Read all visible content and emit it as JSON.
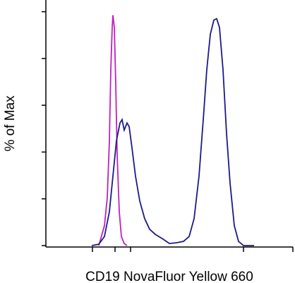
{
  "chart_data": {
    "type": "line",
    "y_label": "% of Max",
    "x_label": "CD19 NovaFluor Yellow 660",
    "xlim": [
      0,
      350
    ],
    "ylim": [
      0,
      105
    ],
    "xticks": [
      66,
      98,
      120,
      280,
      350
    ],
    "yticks": [
      0,
      20,
      40,
      60,
      80,
      100
    ],
    "series": [
      {
        "color": "#c020c0",
        "x": [
          75,
          83,
          87,
          90,
          92,
          94,
          95,
          97,
          99,
          101,
          104,
          107,
          111,
          115
        ],
        "values": [
          0,
          8.5,
          20.6,
          44.8,
          75.2,
          93.3,
          98.5,
          93.3,
          69.1,
          38.8,
          14.5,
          3.9,
          0.9,
          0
        ]
      },
      {
        "color": "#1a1a8c",
        "x": [
          65,
          75,
          83,
          90,
          95,
          100,
          105,
          108,
          111,
          115,
          118,
          122,
          127,
          133,
          140,
          147,
          155,
          165,
          175,
          185,
          195,
          203,
          210,
          217,
          223,
          228,
          233,
          238,
          242,
          246,
          251,
          256,
          261,
          267,
          273,
          280,
          295
        ],
        "values": [
          0,
          0.6,
          3.9,
          14.5,
          29.7,
          44.8,
          52.4,
          53.9,
          49.4,
          52.4,
          50.9,
          41.8,
          29.7,
          19.1,
          11.5,
          7,
          4.8,
          3,
          0.9,
          1.2,
          1.8,
          3.9,
          11.5,
          29.7,
          53.9,
          75.2,
          90.3,
          96.4,
          97,
          93.3,
          75.2,
          47.9,
          26.7,
          8.5,
          1.8,
          0,
          0
        ]
      }
    ]
  }
}
